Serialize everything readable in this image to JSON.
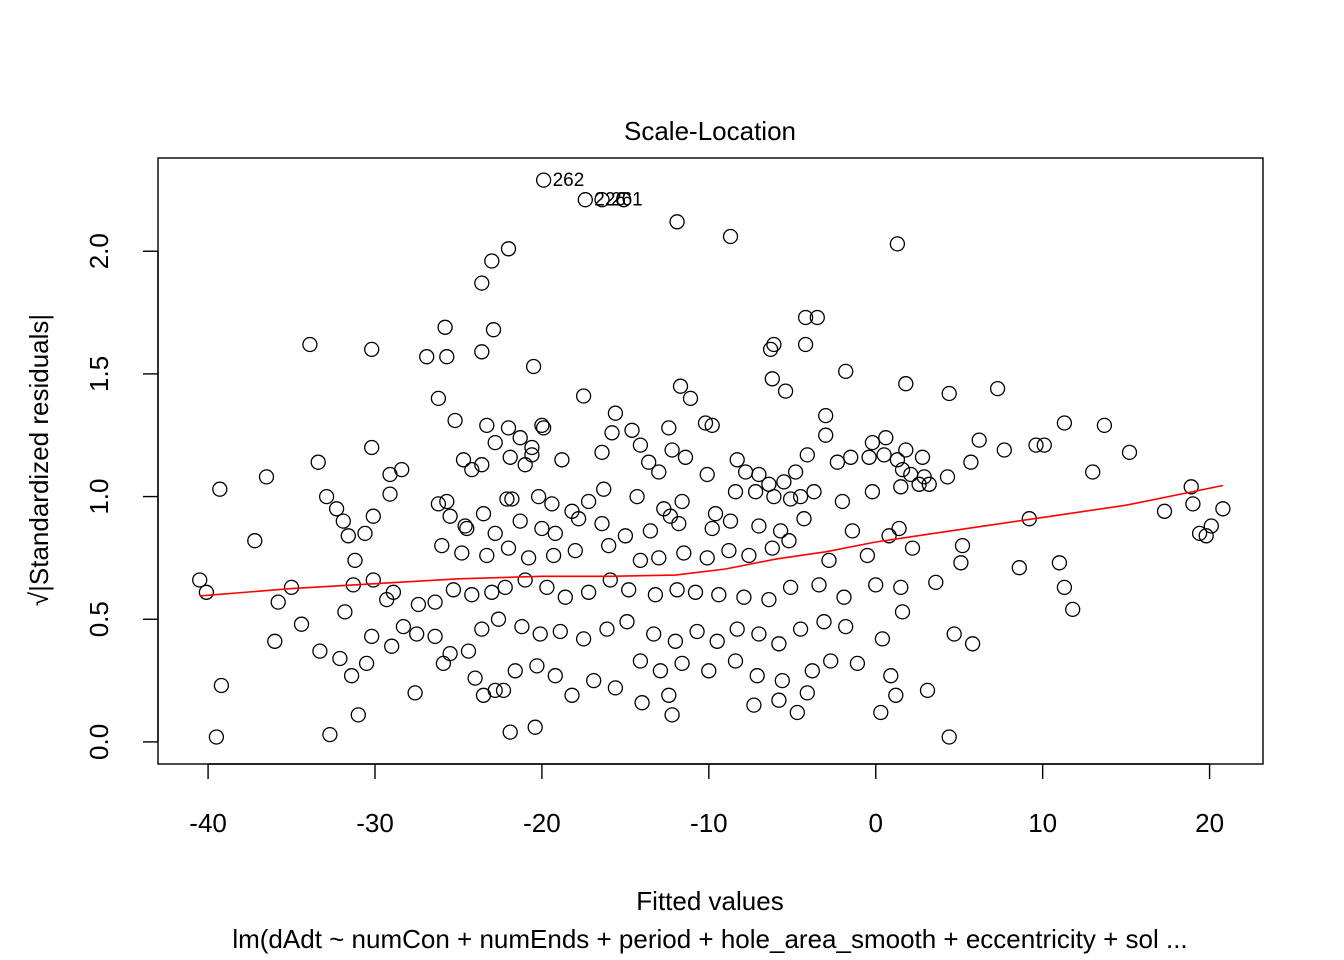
{
  "chart_data": {
    "type": "scatter",
    "title": "Scale-Location",
    "xlabel": "Fitted values",
    "ylabel_radical": "√",
    "ylabel": "|Standardized residuals|",
    "subtitle": "lm(dAdt ~ numCon + numEnds + period + hole_area_smooth + eccentricity + sol ...",
    "xlim": [
      -43,
      23.2
    ],
    "ylim": [
      -0.09,
      2.38
    ],
    "xticks": [
      -40,
      -30,
      -20,
      -10,
      0,
      10,
      20
    ],
    "xtick_labels": [
      "-40",
      "-30",
      "-20",
      "-10",
      "0",
      "10",
      "20"
    ],
    "yticks": [
      0.0,
      0.5,
      1.0,
      1.5,
      2.0
    ],
    "ytick_labels": [
      "0.0",
      "0.5",
      "1.0",
      "1.5",
      "2.0"
    ],
    "colors": {
      "points": "#000000",
      "smooth": "#ff0000"
    },
    "point_labels": [
      {
        "text": "262",
        "x": -19.9,
        "y": 2.29
      },
      {
        "text": "226",
        "x": -17.4,
        "y": 2.21
      },
      {
        "text": "261",
        "x": -16.4,
        "y": 2.21
      }
    ],
    "smooth_line": {
      "x": [
        -40.5,
        -35,
        -30,
        -25,
        -20,
        -16,
        -12,
        -9,
        -6,
        -3,
        0,
        3,
        6,
        10,
        15,
        20.8
      ],
      "y": [
        0.595,
        0.625,
        0.645,
        0.665,
        0.675,
        0.675,
        0.68,
        0.705,
        0.745,
        0.775,
        0.815,
        0.845,
        0.875,
        0.915,
        0.965,
        1.045
      ]
    },
    "points": [
      [
        -19.9,
        2.29
      ],
      [
        -17.4,
        2.21
      ],
      [
        -16.4,
        2.21
      ],
      [
        -15.1,
        2.21
      ],
      [
        -11.9,
        2.12
      ],
      [
        -8.7,
        2.06
      ],
      [
        1.3,
        2.03
      ],
      [
        -22.0,
        2.01
      ],
      [
        -23.0,
        1.96
      ],
      [
        -23.6,
        1.87
      ],
      [
        -4.2,
        1.73
      ],
      [
        -3.5,
        1.73
      ],
      [
        -25.8,
        1.69
      ],
      [
        -22.9,
        1.68
      ],
      [
        -33.9,
        1.62
      ],
      [
        -30.2,
        1.6
      ],
      [
        -26.9,
        1.57
      ],
      [
        -25.7,
        1.57
      ],
      [
        -23.6,
        1.59
      ],
      [
        -6.3,
        1.6
      ],
      [
        -6.1,
        1.62
      ],
      [
        -4.2,
        1.62
      ],
      [
        -20.5,
        1.53
      ],
      [
        -1.8,
        1.51
      ],
      [
        -6.2,
        1.48
      ],
      [
        -11.7,
        1.45
      ],
      [
        -11.1,
        1.4
      ],
      [
        -5.4,
        1.43
      ],
      [
        1.8,
        1.46
      ],
      [
        4.4,
        1.42
      ],
      [
        7.3,
        1.44
      ],
      [
        -17.5,
        1.41
      ],
      [
        -26.2,
        1.4
      ],
      [
        -15.6,
        1.34
      ],
      [
        -25.2,
        1.31
      ],
      [
        -3.0,
        1.33
      ],
      [
        -23.3,
        1.29
      ],
      [
        -22.0,
        1.28
      ],
      [
        -20.0,
        1.29
      ],
      [
        -19.9,
        1.28
      ],
      [
        -14.6,
        1.27
      ],
      [
        -12.4,
        1.28
      ],
      [
        -10.2,
        1.3
      ],
      [
        -9.8,
        1.29
      ],
      [
        -15.8,
        1.26
      ],
      [
        -21.3,
        1.24
      ],
      [
        -22.8,
        1.22
      ],
      [
        -20.6,
        1.2
      ],
      [
        -16.4,
        1.18
      ],
      [
        -14.1,
        1.21
      ],
      [
        -12.2,
        1.19
      ],
      [
        -3.0,
        1.25
      ],
      [
        -0.2,
        1.22
      ],
      [
        0.6,
        1.24
      ],
      [
        1.8,
        1.19
      ],
      [
        2.8,
        1.16
      ],
      [
        11.3,
        1.3
      ],
      [
        13.7,
        1.29
      ],
      [
        15.2,
        1.18
      ],
      [
        6.2,
        1.23
      ],
      [
        7.7,
        1.19
      ],
      [
        9.6,
        1.21
      ],
      [
        10.1,
        1.21
      ],
      [
        -30.2,
        1.2
      ],
      [
        -20.6,
        1.17
      ],
      [
        -21.9,
        1.16
      ],
      [
        -24.7,
        1.15
      ],
      [
        -23.6,
        1.13
      ],
      [
        -24.2,
        1.11
      ],
      [
        -28.4,
        1.11
      ],
      [
        -29.1,
        1.09
      ],
      [
        -36.5,
        1.08
      ],
      [
        -39.3,
        1.03
      ],
      [
        -33.4,
        1.14
      ],
      [
        -21.0,
        1.13
      ],
      [
        -18.8,
        1.15
      ],
      [
        -13.6,
        1.14
      ],
      [
        -13.0,
        1.1
      ],
      [
        -11.4,
        1.16
      ],
      [
        -10.1,
        1.09
      ],
      [
        -8.3,
        1.15
      ],
      [
        -7.8,
        1.1
      ],
      [
        -7.0,
        1.09
      ],
      [
        -6.4,
        1.05
      ],
      [
        -5.5,
        1.06
      ],
      [
        -4.8,
        1.1
      ],
      [
        -4.1,
        1.17
      ],
      [
        -2.3,
        1.14
      ],
      [
        -1.5,
        1.16
      ],
      [
        -0.4,
        1.16
      ],
      [
        0.5,
        1.17
      ],
      [
        1.3,
        1.15
      ],
      [
        1.6,
        1.11
      ],
      [
        2.1,
        1.09
      ],
      [
        2.9,
        1.08
      ],
      [
        2.6,
        1.05
      ],
      [
        4.3,
        1.08
      ],
      [
        5.7,
        1.14
      ],
      [
        13.0,
        1.1
      ],
      [
        -32.9,
        1.0
      ],
      [
        -32.3,
        0.95
      ],
      [
        -31.9,
        0.9
      ],
      [
        -29.1,
        1.01
      ],
      [
        -30.1,
        0.92
      ],
      [
        -26.2,
        0.97
      ],
      [
        -25.7,
        0.98
      ],
      [
        -24.6,
        0.88
      ],
      [
        -22.1,
        0.99
      ],
      [
        -21.8,
        0.99
      ],
      [
        -20.2,
        1.0
      ],
      [
        -19.4,
        0.97
      ],
      [
        -18.2,
        0.94
      ],
      [
        -17.2,
        0.98
      ],
      [
        -16.3,
        1.03
      ],
      [
        -14.3,
        1.0
      ],
      [
        -12.7,
        0.95
      ],
      [
        -12.3,
        0.92
      ],
      [
        -11.6,
        0.98
      ],
      [
        -9.6,
        0.93
      ],
      [
        -8.4,
        1.02
      ],
      [
        -7.2,
        1.02
      ],
      [
        -6.1,
        1.0
      ],
      [
        -5.1,
        0.99
      ],
      [
        -4.5,
        1.0
      ],
      [
        -3.7,
        1.02
      ],
      [
        -2.0,
        0.98
      ],
      [
        -0.2,
        1.02
      ],
      [
        1.5,
        1.04
      ],
      [
        3.2,
        1.05
      ],
      [
        -31.6,
        0.84
      ],
      [
        -30.6,
        0.85
      ],
      [
        -25.5,
        0.92
      ],
      [
        -24.5,
        0.87
      ],
      [
        -23.5,
        0.93
      ],
      [
        -22.8,
        0.85
      ],
      [
        -21.3,
        0.9
      ],
      [
        -20.0,
        0.87
      ],
      [
        -19.2,
        0.85
      ],
      [
        -17.8,
        0.91
      ],
      [
        -16.4,
        0.89
      ],
      [
        -15.0,
        0.84
      ],
      [
        -13.5,
        0.86
      ],
      [
        -11.8,
        0.89
      ],
      [
        -9.8,
        0.87
      ],
      [
        -8.7,
        0.9
      ],
      [
        -7.0,
        0.88
      ],
      [
        -5.7,
        0.86
      ],
      [
        -4.3,
        0.91
      ],
      [
        -1.4,
        0.86
      ],
      [
        0.8,
        0.84
      ],
      [
        1.4,
        0.87
      ],
      [
        -37.2,
        0.82
      ],
      [
        -31.2,
        0.74
      ],
      [
        -26.0,
        0.8
      ],
      [
        -24.8,
        0.77
      ],
      [
        -23.3,
        0.76
      ],
      [
        -22.0,
        0.79
      ],
      [
        -20.8,
        0.75
      ],
      [
        -19.3,
        0.76
      ],
      [
        -18.0,
        0.78
      ],
      [
        -16.0,
        0.8
      ],
      [
        -14.1,
        0.74
      ],
      [
        -13.0,
        0.75
      ],
      [
        -11.5,
        0.77
      ],
      [
        -10.1,
        0.75
      ],
      [
        -8.8,
        0.78
      ],
      [
        -7.6,
        0.76
      ],
      [
        -6.2,
        0.79
      ],
      [
        -5.2,
        0.82
      ],
      [
        -2.8,
        0.74
      ],
      [
        -0.5,
        0.76
      ],
      [
        2.2,
        0.79
      ],
      [
        5.2,
        0.8
      ],
      [
        9.2,
        0.91
      ],
      [
        17.3,
        0.94
      ],
      [
        19.4,
        0.85
      ],
      [
        19.8,
        0.84
      ],
      [
        20.1,
        0.88
      ],
      [
        20.8,
        0.95
      ],
      [
        18.9,
        1.04
      ],
      [
        19.0,
        0.97
      ],
      [
        -40.5,
        0.66
      ],
      [
        -40.1,
        0.61
      ],
      [
        -35.0,
        0.63
      ],
      [
        -35.8,
        0.57
      ],
      [
        -36.0,
        0.41
      ],
      [
        -34.4,
        0.48
      ],
      [
        -31.3,
        0.64
      ],
      [
        -30.1,
        0.66
      ],
      [
        -29.3,
        0.58
      ],
      [
        -28.9,
        0.61
      ],
      [
        -27.4,
        0.56
      ],
      [
        -26.4,
        0.57
      ],
      [
        -25.3,
        0.62
      ],
      [
        -24.2,
        0.6
      ],
      [
        -23.0,
        0.61
      ],
      [
        -22.2,
        0.63
      ],
      [
        -21.0,
        0.66
      ],
      [
        -19.7,
        0.63
      ],
      [
        -18.6,
        0.59
      ],
      [
        -17.2,
        0.61
      ],
      [
        -15.9,
        0.66
      ],
      [
        -14.8,
        0.62
      ],
      [
        -13.2,
        0.6
      ],
      [
        -11.9,
        0.62
      ],
      [
        -10.8,
        0.61
      ],
      [
        -9.4,
        0.6
      ],
      [
        -7.9,
        0.59
      ],
      [
        -6.4,
        0.58
      ],
      [
        -5.1,
        0.63
      ],
      [
        -3.4,
        0.64
      ],
      [
        -1.9,
        0.59
      ],
      [
        0.0,
        0.64
      ],
      [
        1.5,
        0.63
      ],
      [
        3.6,
        0.65
      ],
      [
        5.1,
        0.73
      ],
      [
        8.6,
        0.71
      ],
      [
        11.0,
        0.73
      ],
      [
        11.3,
        0.63
      ],
      [
        11.8,
        0.54
      ],
      [
        -31.8,
        0.53
      ],
      [
        -30.2,
        0.43
      ],
      [
        -29.0,
        0.39
      ],
      [
        -28.3,
        0.47
      ],
      [
        -27.5,
        0.44
      ],
      [
        -26.4,
        0.43
      ],
      [
        -25.5,
        0.36
      ],
      [
        -24.4,
        0.37
      ],
      [
        -23.6,
        0.46
      ],
      [
        -22.6,
        0.5
      ],
      [
        -21.2,
        0.47
      ],
      [
        -20.1,
        0.44
      ],
      [
        -18.9,
        0.45
      ],
      [
        -17.5,
        0.42
      ],
      [
        -16.1,
        0.46
      ],
      [
        -14.9,
        0.49
      ],
      [
        -13.3,
        0.44
      ],
      [
        -12.0,
        0.41
      ],
      [
        -10.7,
        0.45
      ],
      [
        -9.5,
        0.41
      ],
      [
        -8.3,
        0.46
      ],
      [
        -7.0,
        0.44
      ],
      [
        -5.8,
        0.4
      ],
      [
        -4.5,
        0.46
      ],
      [
        -3.1,
        0.49
      ],
      [
        -1.8,
        0.47
      ],
      [
        0.4,
        0.42
      ],
      [
        1.6,
        0.53
      ],
      [
        4.7,
        0.44
      ],
      [
        5.8,
        0.4
      ],
      [
        -33.3,
        0.37
      ],
      [
        -32.1,
        0.34
      ],
      [
        -31.4,
        0.27
      ],
      [
        -30.5,
        0.32
      ],
      [
        -27.6,
        0.2
      ],
      [
        -25.9,
        0.32
      ],
      [
        -24.0,
        0.26
      ],
      [
        -22.8,
        0.21
      ],
      [
        -21.6,
        0.29
      ],
      [
        -20.3,
        0.31
      ],
      [
        -19.2,
        0.27
      ],
      [
        -16.9,
        0.25
      ],
      [
        -15.6,
        0.22
      ],
      [
        -14.1,
        0.33
      ],
      [
        -12.9,
        0.29
      ],
      [
        -11.6,
        0.32
      ],
      [
        -10.0,
        0.29
      ],
      [
        -8.4,
        0.33
      ],
      [
        -7.1,
        0.27
      ],
      [
        -5.6,
        0.25
      ],
      [
        -3.8,
        0.29
      ],
      [
        -2.7,
        0.33
      ],
      [
        -1.1,
        0.32
      ],
      [
        0.9,
        0.27
      ],
      [
        -39.2,
        0.23
      ],
      [
        -31.0,
        0.11
      ],
      [
        -32.7,
        0.03
      ],
      [
        -39.5,
        0.02
      ],
      [
        -23.5,
        0.19
      ],
      [
        -22.3,
        0.21
      ],
      [
        -21.9,
        0.04
      ],
      [
        -20.4,
        0.06
      ],
      [
        -18.2,
        0.19
      ],
      [
        -14.0,
        0.16
      ],
      [
        -12.4,
        0.19
      ],
      [
        -12.2,
        0.11
      ],
      [
        -7.3,
        0.15
      ],
      [
        -5.8,
        0.17
      ],
      [
        -4.7,
        0.12
      ],
      [
        -4.1,
        0.2
      ],
      [
        0.3,
        0.12
      ],
      [
        1.2,
        0.19
      ],
      [
        3.1,
        0.21
      ],
      [
        4.4,
        0.02
      ]
    ]
  }
}
